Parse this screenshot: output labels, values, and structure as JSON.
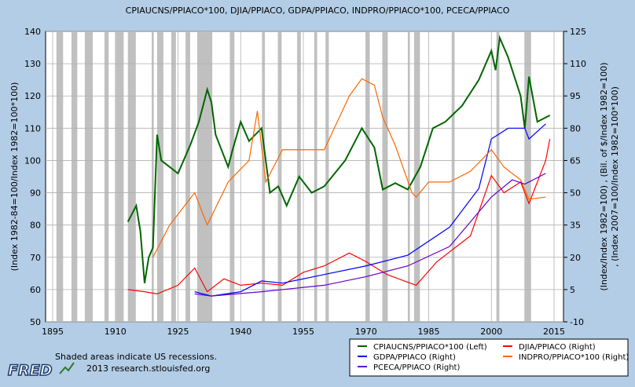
{
  "chart_data": {
    "type": "line",
    "title": "CPIAUCNS/PPIACO*100, DJIA/PPIACO, GDPA/PPIACO, INDPRO/PPIACO*100, PCECA/PPIACO",
    "ylabel_left": "(Index 1982-84=100/Index 1982=100*100)",
    "ylabel_right": [
      "(Index/Index 1982=100) , (Bil. of $/Index 1982=100)",
      ", (Index 2007=100/Index 1982=100*100)"
    ],
    "xlim": [
      1895,
      2015
    ],
    "ylim_left": [
      50,
      140
    ],
    "ylim_right": [
      -10,
      125
    ],
    "x_ticks": [
      "1895",
      "1910",
      "1925",
      "1940",
      "1955",
      "1970",
      "1985",
      "2000",
      "2015"
    ],
    "y_ticks_left": [
      "50",
      "60",
      "70",
      "80",
      "90",
      "100",
      "110",
      "120",
      "130",
      "140"
    ],
    "y_ticks_right": [
      "-10",
      "5",
      "20",
      "35",
      "50",
      "65",
      "80",
      "95",
      "110",
      "125"
    ],
    "grid": true,
    "legend_position": "bottom-right",
    "recessions": [
      [
        1895.9,
        1897.5
      ],
      [
        1899.5,
        1900.9
      ],
      [
        1902.7,
        1904.6
      ],
      [
        1907.4,
        1908.4
      ],
      [
        1910.1,
        1912.0
      ],
      [
        1913.0,
        1914.9
      ],
      [
        1918.7,
        1919.2
      ],
      [
        1920.0,
        1921.5
      ],
      [
        1923.4,
        1924.5
      ],
      [
        1926.8,
        1927.9
      ],
      [
        1929.6,
        1933.2
      ],
      [
        1937.4,
        1938.5
      ],
      [
        1945.1,
        1945.8
      ],
      [
        1948.9,
        1949.8
      ],
      [
        1953.5,
        1954.4
      ],
      [
        1957.6,
        1958.3
      ],
      [
        1960.3,
        1961.1
      ],
      [
        1969.9,
        1970.9
      ],
      [
        1973.9,
        1975.2
      ],
      [
        1980.0,
        1980.5
      ],
      [
        1981.5,
        1982.9
      ],
      [
        1990.5,
        1991.2
      ],
      [
        2001.2,
        2001.9
      ],
      [
        2007.9,
        2009.5
      ]
    ],
    "series": [
      {
        "name": "CPIAUCNS/PPIACO*100 (Left)",
        "axis": "left",
        "color": "#006600",
        "x": [
          1913,
          1915,
          1916,
          1917,
          1918,
          1919,
          1920,
          1921,
          1925,
          1928,
          1930,
          1932,
          1933,
          1934,
          1937,
          1938,
          1940,
          1942,
          1945,
          1947,
          1949,
          1951,
          1954,
          1957,
          1960,
          1965,
          1969,
          1972,
          1974,
          1977,
          1980,
          1983,
          1986,
          1989,
          1993,
          1997,
          2000,
          2001,
          2002,
          2004,
          2007,
          2008,
          2009,
          2011,
          2014
        ],
        "y": [
          81,
          86,
          78,
          62,
          70,
          73,
          108,
          100,
          96,
          105,
          112,
          122,
          118,
          108,
          98,
          103,
          112,
          106,
          110,
          90,
          92,
          86,
          95,
          90,
          92,
          100,
          110,
          104,
          91,
          93,
          91,
          98,
          110,
          112,
          117,
          125,
          134,
          128,
          138,
          132,
          120,
          110,
          126,
          112,
          114
        ]
      },
      {
        "name": "DJIA/PPIACO (Right)",
        "axis": "right",
        "color": "#ff0000",
        "x": [
          1913,
          1917,
          1920,
          1925,
          1929,
          1932,
          1936,
          1940,
          1945,
          1950,
          1955,
          1960,
          1966,
          1970,
          1975,
          1982,
          1987,
          1995,
          2000,
          2003,
          2007,
          2009,
          2013,
          2014
        ],
        "y": [
          5,
          4,
          3,
          7,
          15,
          4,
          10,
          7,
          8,
          7,
          13,
          16,
          22,
          18,
          12,
          7,
          18,
          30,
          58,
          50,
          55,
          45,
          65,
          75
        ]
      },
      {
        "name": "GDPA/PPIACO (Right)",
        "axis": "right",
        "color": "#0000ff",
        "x": [
          1929,
          1933,
          1940,
          1945,
          1950,
          1960,
          1970,
          1980,
          1990,
          1997,
          2000,
          2004,
          2008,
          2009,
          2013
        ],
        "y": [
          4,
          2,
          4,
          9,
          8,
          12,
          16,
          21,
          34,
          52,
          75,
          80,
          80,
          75,
          82
        ]
      },
      {
        "name": "INDPRO/PPIACO*100 (Right)",
        "axis": "right",
        "color": "#ff6600",
        "x": [
          1919,
          1923,
          1929,
          1932,
          1937,
          1942,
          1944,
          1946,
          1950,
          1955,
          1960,
          1966,
          1969,
          1972,
          1974,
          1977,
          1981,
          1982,
          1985,
          1990,
          1995,
          2000,
          2003,
          2007,
          2009,
          2013
        ],
        "y": [
          20,
          35,
          50,
          35,
          55,
          65,
          88,
          55,
          70,
          70,
          70,
          95,
          103,
          100,
          85,
          72,
          50,
          48,
          55,
          55,
          60,
          70,
          62,
          56,
          47,
          48
        ]
      },
      {
        "name": "PCECA/PPIACO (Right)",
        "axis": "right",
        "color": "#6600cc",
        "x": [
          1929,
          1933,
          1945,
          1960,
          1970,
          1980,
          1990,
          2000,
          2005,
          2008,
          2013
        ],
        "y": [
          3,
          2,
          4,
          7,
          11,
          16,
          25,
          48,
          56,
          54,
          59
        ]
      }
    ]
  },
  "footer": {
    "note": "Shaded areas indicate US recessions.",
    "source": "2013 research.stlouisfed.org",
    "logo": "FRED"
  }
}
